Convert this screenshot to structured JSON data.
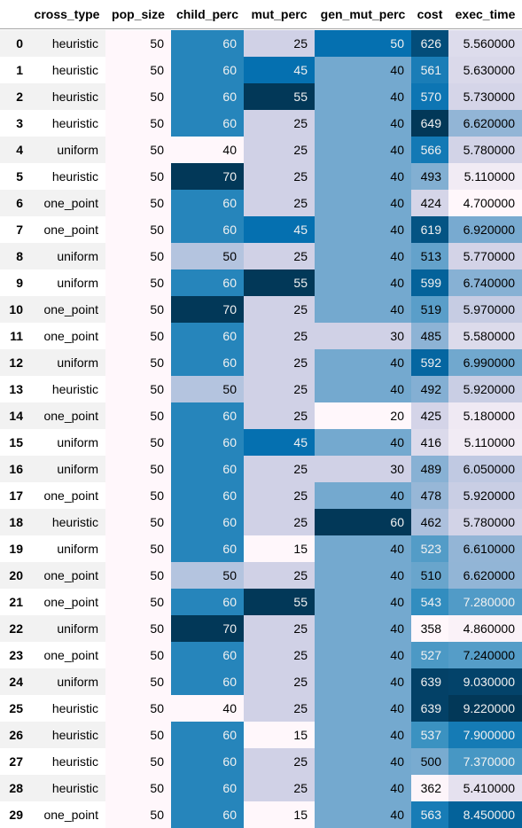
{
  "chart_data": {
    "type": "table",
    "columns": [
      "cross_type",
      "pop_size",
      "child_perc",
      "mut_perc",
      "gen_mut_perc",
      "cost",
      "exec_time"
    ],
    "index": [
      "0",
      "1",
      "2",
      "3",
      "4",
      "5",
      "6",
      "7",
      "8",
      "9",
      "10",
      "11",
      "12",
      "13",
      "14",
      "15",
      "16",
      "17",
      "18",
      "19",
      "20",
      "21",
      "22",
      "23",
      "24",
      "25",
      "26",
      "27",
      "28",
      "29"
    ],
    "rows": [
      [
        "heuristic",
        "50",
        "60",
        "25",
        "50",
        "626",
        "5.560000"
      ],
      [
        "heuristic",
        "50",
        "60",
        "45",
        "40",
        "561",
        "5.630000"
      ],
      [
        "heuristic",
        "50",
        "60",
        "55",
        "40",
        "570",
        "5.730000"
      ],
      [
        "heuristic",
        "50",
        "60",
        "25",
        "40",
        "649",
        "6.620000"
      ],
      [
        "uniform",
        "50",
        "40",
        "25",
        "40",
        "566",
        "5.780000"
      ],
      [
        "heuristic",
        "50",
        "70",
        "25",
        "40",
        "493",
        "5.110000"
      ],
      [
        "one_point",
        "50",
        "60",
        "25",
        "40",
        "424",
        "4.700000"
      ],
      [
        "one_point",
        "50",
        "60",
        "45",
        "40",
        "619",
        "6.920000"
      ],
      [
        "uniform",
        "50",
        "50",
        "25",
        "40",
        "513",
        "5.770000"
      ],
      [
        "uniform",
        "50",
        "60",
        "55",
        "40",
        "599",
        "6.740000"
      ],
      [
        "one_point",
        "50",
        "70",
        "25",
        "40",
        "519",
        "5.970000"
      ],
      [
        "one_point",
        "50",
        "60",
        "25",
        "30",
        "485",
        "5.580000"
      ],
      [
        "uniform",
        "50",
        "60",
        "25",
        "40",
        "592",
        "6.990000"
      ],
      [
        "heuristic",
        "50",
        "50",
        "25",
        "40",
        "492",
        "5.920000"
      ],
      [
        "one_point",
        "50",
        "60",
        "25",
        "20",
        "425",
        "5.180000"
      ],
      [
        "uniform",
        "50",
        "60",
        "45",
        "40",
        "416",
        "5.110000"
      ],
      [
        "uniform",
        "50",
        "60",
        "25",
        "30",
        "489",
        "6.050000"
      ],
      [
        "one_point",
        "50",
        "60",
        "25",
        "40",
        "478",
        "5.920000"
      ],
      [
        "heuristic",
        "50",
        "60",
        "25",
        "60",
        "462",
        "5.780000"
      ],
      [
        "uniform",
        "50",
        "60",
        "15",
        "40",
        "523",
        "6.610000"
      ],
      [
        "one_point",
        "50",
        "50",
        "25",
        "40",
        "510",
        "6.620000"
      ],
      [
        "one_point",
        "50",
        "60",
        "55",
        "40",
        "543",
        "7.280000"
      ],
      [
        "uniform",
        "50",
        "70",
        "25",
        "40",
        "358",
        "4.860000"
      ],
      [
        "one_point",
        "50",
        "60",
        "25",
        "40",
        "527",
        "7.240000"
      ],
      [
        "uniform",
        "50",
        "60",
        "25",
        "40",
        "639",
        "9.030000"
      ],
      [
        "heuristic",
        "50",
        "40",
        "25",
        "40",
        "639",
        "9.220000"
      ],
      [
        "heuristic",
        "50",
        "60",
        "15",
        "40",
        "537",
        "7.900000"
      ],
      [
        "heuristic",
        "50",
        "60",
        "25",
        "40",
        "500",
        "7.370000"
      ],
      [
        "heuristic",
        "50",
        "60",
        "25",
        "40",
        "362",
        "5.410000"
      ],
      [
        "one_point",
        "50",
        "60",
        "15",
        "40",
        "563",
        "8.450000"
      ]
    ],
    "colormap": "PuBu",
    "gradient_columns": [
      "pop_size",
      "child_perc",
      "mut_perc",
      "gen_mut_perc",
      "cost",
      "exec_time"
    ],
    "colors": {
      "low": "#fff7fb",
      "high": "#023858",
      "label": "#000000"
    }
  }
}
